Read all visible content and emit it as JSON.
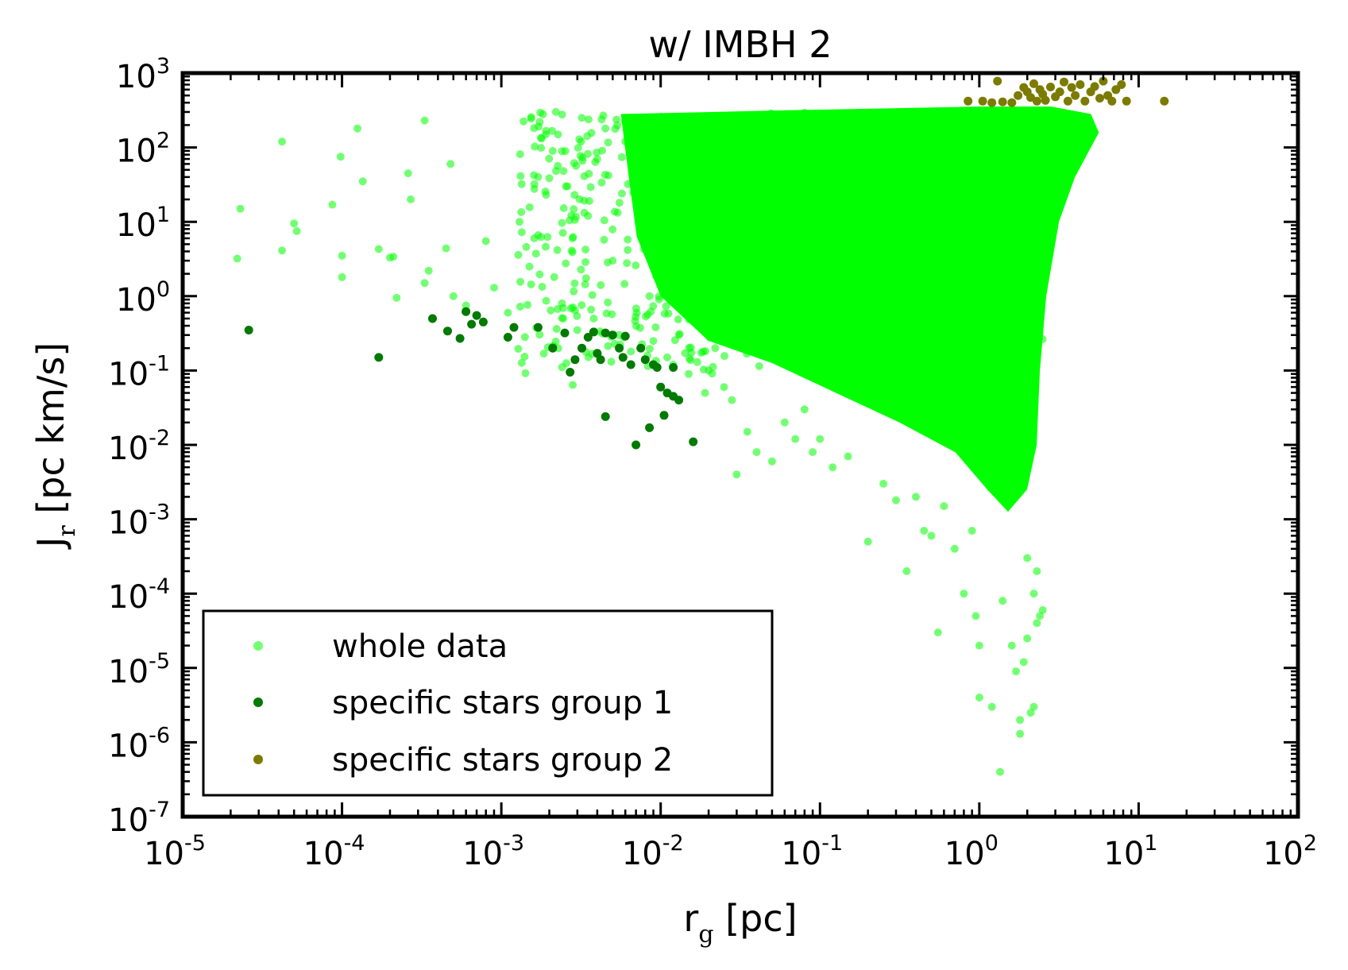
{
  "chart_data": {
    "type": "scatter",
    "title": "w/ IMBH 2",
    "xlabel": {
      "main": "r",
      "sub": "g",
      "unit": " [pc]"
    },
    "ylabel": {
      "main": "J",
      "sub": "r",
      "unit": " [pc km/s]"
    },
    "xscale": "log",
    "yscale": "log",
    "xlim": [
      1e-05,
      100
    ],
    "ylim": [
      1e-07,
      1000
    ],
    "x_ticks": [
      {
        "base": "10",
        "exp": "-5",
        "value": 1e-05
      },
      {
        "base": "10",
        "exp": "-4",
        "value": 0.0001
      },
      {
        "base": "10",
        "exp": "-3",
        "value": 0.001
      },
      {
        "base": "10",
        "exp": "-2",
        "value": 0.01
      },
      {
        "base": "10",
        "exp": "-1",
        "value": 0.1
      },
      {
        "base": "10",
        "exp": "0",
        "value": 1
      },
      {
        "base": "10",
        "exp": "1",
        "value": 10
      },
      {
        "base": "10",
        "exp": "2",
        "value": 100
      }
    ],
    "y_ticks": [
      {
        "base": "10",
        "exp": "-7",
        "value": 1e-07
      },
      {
        "base": "10",
        "exp": "-6",
        "value": 1e-06
      },
      {
        "base": "10",
        "exp": "-5",
        "value": 1e-05
      },
      {
        "base": "10",
        "exp": "-4",
        "value": 0.0001
      },
      {
        "base": "10",
        "exp": "-3",
        "value": 0.001
      },
      {
        "base": "10",
        "exp": "-2",
        "value": 0.01
      },
      {
        "base": "10",
        "exp": "-1",
        "value": 0.1
      },
      {
        "base": "10",
        "exp": "0",
        "value": 1
      },
      {
        "base": "10",
        "exp": "1",
        "value": 10
      },
      {
        "base": "10",
        "exp": "2",
        "value": 100
      },
      {
        "base": "10",
        "exp": "3",
        "value": 1000
      }
    ],
    "legend": {
      "position": "lower-left",
      "entries": [
        {
          "label": "whole data",
          "color": "#00ff00",
          "alpha": 0.55
        },
        {
          "label": "specific stars group 1",
          "color": "#007a00",
          "alpha": 1.0
        },
        {
          "label": "specific stars group 2",
          "color": "#7b7b00",
          "alpha": 1.0
        }
      ]
    },
    "series": [
      {
        "name": "whole data",
        "color": "#00ff00",
        "alpha": 0.55,
        "dense_region": {
          "description": "dense cloud, log10 ranges",
          "log_r_min": -2.2,
          "log_r_max": 0.5,
          "note": "upper envelope ~ J=300, lower boundary drops with r"
        },
        "points": [
          [
            2.2e-05,
            3.2
          ],
          [
            2.3e-05,
            15
          ],
          [
            4.2e-05,
            4.1
          ],
          [
            4.2e-05,
            120
          ],
          [
            5e-05,
            9.5
          ],
          [
            5.2e-05,
            7.5
          ],
          [
            8.7e-05,
            17
          ],
          [
            0.0001,
            1.8
          ],
          [
            0.0001,
            3.5
          ],
          [
            9.8e-05,
            75
          ],
          [
            0.000125,
            180
          ],
          [
            0.000135,
            35
          ],
          [
            0.00017,
            4.3
          ],
          [
            0.0002,
            3.3
          ],
          [
            0.00021,
            3.4
          ],
          [
            0.00022,
            0.95
          ],
          [
            0.00026,
            45
          ],
          [
            0.00027,
            20
          ],
          [
            0.00033,
            230
          ],
          [
            0.00033,
            1.5
          ],
          [
            0.00035,
            2.2
          ],
          [
            0.00045,
            4.4
          ],
          [
            0.00048,
            60
          ],
          [
            0.0005,
            1.0
          ],
          [
            0.0006,
            0.75
          ],
          [
            0.0007,
            0.55
          ],
          [
            0.0008,
            5.5
          ],
          [
            0.0009,
            1.3
          ],
          [
            0.0011,
            0.6
          ],
          [
            0.0013,
            10
          ],
          [
            0.0015,
            2.5
          ],
          [
            0.0017,
            40
          ],
          [
            0.0019,
            150
          ],
          [
            0.0021,
            90
          ],
          [
            0.0022,
            300
          ],
          [
            0.0024,
            0.8
          ],
          [
            0.0026,
            30
          ],
          [
            0.0028,
            6
          ],
          [
            0.003,
            0.35
          ],
          [
            0.0032,
            250
          ],
          [
            0.0035,
            12
          ],
          [
            0.0038,
            0.5
          ],
          [
            0.004,
            70
          ],
          [
            0.0045,
            180
          ],
          [
            0.005,
            3
          ],
          [
            0.0055,
            0.3
          ],
          [
            0.006,
            120
          ],
          [
            0.0065,
            0.18
          ],
          [
            0.007,
            20
          ],
          [
            0.0075,
            250
          ],
          [
            0.0085,
            1.0
          ],
          [
            0.009,
            0.25
          ],
          [
            0.0095,
            50
          ],
          [
            0.011,
            0.15
          ],
          [
            0.012,
            0.12
          ],
          [
            0.013,
            0.3
          ],
          [
            0.015,
            0.09
          ],
          [
            0.017,
            0.13
          ],
          [
            0.019,
            0.05
          ],
          [
            0.02,
            0.1
          ],
          [
            0.022,
            0.2
          ],
          [
            0.025,
            0.06
          ],
          [
            0.028,
            0.04
          ],
          [
            0.03,
            0.004
          ],
          [
            0.035,
            0.015
          ],
          [
            0.04,
            0.008
          ],
          [
            0.05,
            0.006
          ],
          [
            0.06,
            0.02
          ],
          [
            0.07,
            0.012
          ],
          [
            0.08,
            0.03
          ],
          [
            0.09,
            0.008
          ],
          [
            0.1,
            0.012
          ],
          [
            0.12,
            0.005
          ],
          [
            0.15,
            0.007
          ],
          [
            0.2,
            0.0005
          ],
          [
            0.25,
            0.003
          ],
          [
            0.3,
            0.0018
          ],
          [
            0.35,
            0.0002
          ],
          [
            0.4,
            0.002
          ],
          [
            0.45,
            0.0007
          ],
          [
            0.5,
            0.0006
          ],
          [
            0.55,
            3e-05
          ],
          [
            0.6,
            0.0015
          ],
          [
            0.7,
            0.0004
          ],
          [
            0.8,
            0.0001
          ],
          [
            0.9,
            0.0007
          ],
          [
            0.95,
            5e-05
          ],
          [
            1.0,
            2e-05
          ],
          [
            1.0,
            4e-06
          ],
          [
            1.2,
            3e-06
          ],
          [
            1.35,
            4e-07
          ],
          [
            1.4,
            8e-05
          ],
          [
            1.6,
            2e-05
          ],
          [
            1.7,
            9e-06
          ],
          [
            1.8,
            1.3e-06
          ],
          [
            1.8,
            2e-06
          ],
          [
            1.9,
            1.2e-05
          ],
          [
            2.0,
            2.5e-05
          ],
          [
            2.1,
            2.5e-06
          ],
          [
            2.2,
            3e-06
          ],
          [
            2.3,
            4e-05
          ],
          [
            2.4,
            5e-05
          ],
          [
            2.5,
            6e-05
          ],
          [
            2.2,
            0.0001
          ],
          [
            2.0,
            0.0003
          ],
          [
            2.3,
            0.0002
          ]
        ]
      },
      {
        "name": "specific stars group 1",
        "color": "#007a00",
        "points": [
          [
            2.6e-05,
            0.35
          ],
          [
            0.00017,
            0.15
          ],
          [
            0.00037,
            0.5
          ],
          [
            0.00046,
            0.34
          ],
          [
            0.00055,
            0.27
          ],
          [
            0.0006,
            0.62
          ],
          [
            0.00065,
            0.42
          ],
          [
            0.0007,
            0.55
          ],
          [
            0.00077,
            0.45
          ],
          [
            0.0011,
            0.28
          ],
          [
            0.0012,
            0.38
          ],
          [
            0.0017,
            0.38
          ],
          [
            0.0021,
            0.2
          ],
          [
            0.0025,
            0.32
          ],
          [
            0.0027,
            0.095
          ],
          [
            0.0029,
            0.14
          ],
          [
            0.0032,
            0.2
          ],
          [
            0.0035,
            0.28
          ],
          [
            0.0038,
            0.33
          ],
          [
            0.004,
            0.17
          ],
          [
            0.0042,
            0.14
          ],
          [
            0.0045,
            0.32
          ],
          [
            0.0045,
            0.024
          ],
          [
            0.005,
            0.3
          ],
          [
            0.0055,
            0.2
          ],
          [
            0.0058,
            0.15
          ],
          [
            0.006,
            0.29
          ],
          [
            0.0065,
            0.12
          ],
          [
            0.007,
            0.01
          ],
          [
            0.0075,
            0.2
          ],
          [
            0.008,
            0.14
          ],
          [
            0.0085,
            0.017
          ],
          [
            0.009,
            0.12
          ],
          [
            0.0095,
            0.11
          ],
          [
            0.01,
            0.06
          ],
          [
            0.0105,
            0.025
          ],
          [
            0.011,
            0.05
          ],
          [
            0.012,
            0.045
          ],
          [
            0.013,
            0.04
          ],
          [
            0.012,
            0.11
          ],
          [
            0.016,
            0.011
          ]
        ]
      },
      {
        "name": "specific stars group 2",
        "color": "#7b7b00",
        "points": [
          [
            0.85,
            420
          ],
          [
            1.05,
            420
          ],
          [
            1.2,
            400
          ],
          [
            1.3,
            780
          ],
          [
            1.4,
            410
          ],
          [
            1.6,
            400
          ],
          [
            1.75,
            500
          ],
          [
            1.9,
            640
          ],
          [
            2.0,
            560
          ],
          [
            2.1,
            470
          ],
          [
            2.2,
            720
          ],
          [
            2.3,
            420
          ],
          [
            2.4,
            600
          ],
          [
            2.5,
            520
          ],
          [
            2.6,
            430
          ],
          [
            2.8,
            650
          ],
          [
            3.0,
            480
          ],
          [
            3.2,
            560
          ],
          [
            3.4,
            760
          ],
          [
            3.6,
            420
          ],
          [
            3.8,
            640
          ],
          [
            4.0,
            500
          ],
          [
            4.3,
            700
          ],
          [
            4.6,
            420
          ],
          [
            5.0,
            560
          ],
          [
            5.3,
            660
          ],
          [
            5.7,
            460
          ],
          [
            6.0,
            780
          ],
          [
            6.4,
            500
          ],
          [
            6.8,
            420
          ],
          [
            7.2,
            600
          ],
          [
            7.8,
            700
          ],
          [
            8.4,
            420
          ],
          [
            14.5,
            420
          ]
        ]
      }
    ]
  }
}
